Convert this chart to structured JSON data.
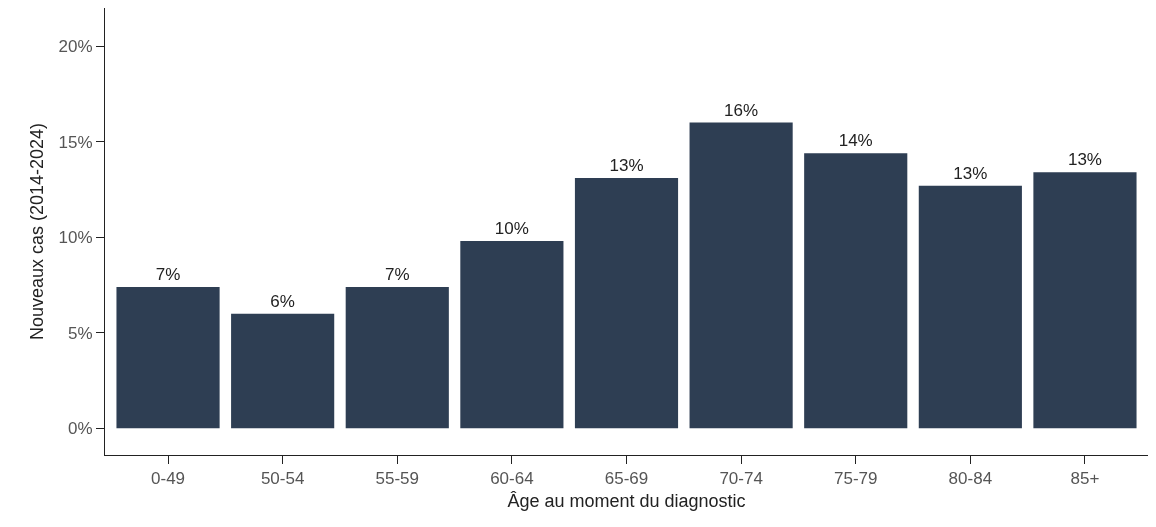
{
  "chart_data": {
    "type": "bar",
    "xlabel": "Âge au moment du diagnostic",
    "ylabel": "Nouveaux cas (2014-2024)",
    "categories": [
      "0-49",
      "50-54",
      "55-59",
      "60-64",
      "65-69",
      "70-74",
      "75-79",
      "80-84",
      "85+"
    ],
    "values": [
      7.4,
      6.0,
      7.4,
      9.8,
      13.1,
      16.0,
      14.4,
      12.7,
      13.4
    ],
    "value_labels": [
      "7%",
      "6%",
      "7%",
      "10%",
      "13%",
      "16%",
      "14%",
      "13%",
      "13%"
    ],
    "color": "#2e3e53",
    "ylim": [
      -1.4,
      22
    ],
    "yticks": [
      {
        "value": 0,
        "label": "0%"
      },
      {
        "value": 5,
        "label": "5%"
      },
      {
        "value": 10,
        "label": "10%"
      },
      {
        "value": 15,
        "label": "15%"
      },
      {
        "value": 20,
        "label": "20%"
      }
    ],
    "grid": false
  }
}
